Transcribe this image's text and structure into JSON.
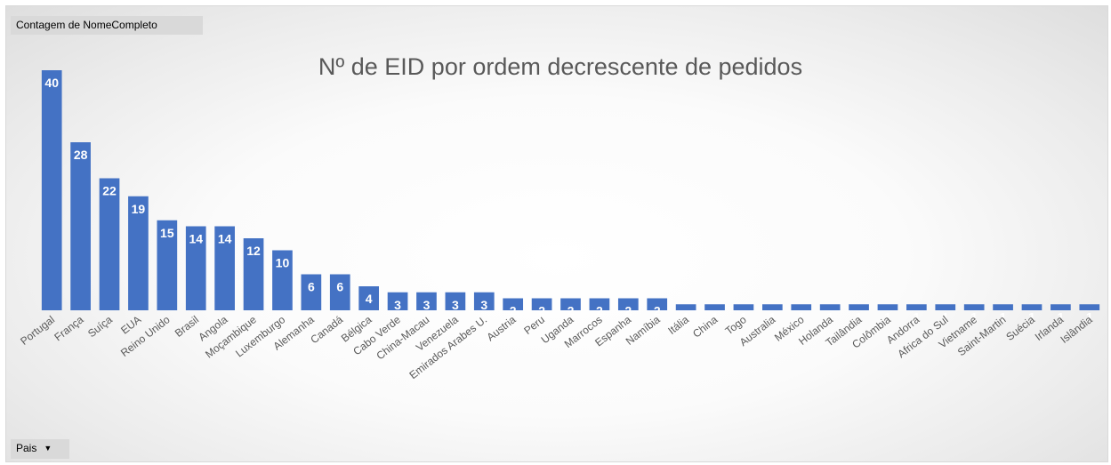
{
  "value_field_button": "Contagem de NomeCompleto",
  "axis_field_button": "Pais",
  "chart_data": {
    "type": "bar",
    "title": "Nº de EID por ordem decrescente de pedidos",
    "categories": [
      "Portugal",
      "França",
      "Suíça",
      "EUA",
      "Reino Unido",
      "Brasil",
      "Angola",
      "Moçambique",
      "Luxemburgo",
      "Alemanha",
      "Canadá",
      "Bélgica",
      "Cabo Verde",
      "China-Macau",
      "Venezuela",
      "Emirados Arabes U.",
      "Austria",
      "Peru",
      "Uganda",
      "Marrocos",
      "Espanha",
      "Namíbia",
      "Itália",
      "China",
      "Togo",
      "Australia",
      "México",
      "Holanda",
      "Tailândia",
      "Colômbia",
      "Andorra",
      "Africa do Sul",
      "Vietname",
      "Saint-Martin",
      "Suécia",
      "Irlanda",
      "Islândia"
    ],
    "values": [
      40,
      28,
      22,
      19,
      15,
      14,
      14,
      12,
      10,
      6,
      6,
      4,
      3,
      3,
      3,
      3,
      2,
      2,
      2,
      2,
      2,
      2,
      1,
      1,
      1,
      1,
      1,
      1,
      1,
      1,
      1,
      1,
      1,
      1,
      1,
      1,
      1
    ],
    "ylim": [
      0,
      40
    ],
    "bar_color": "#4472c4",
    "label_color": "#ffffff",
    "grid": false,
    "legend": false
  }
}
